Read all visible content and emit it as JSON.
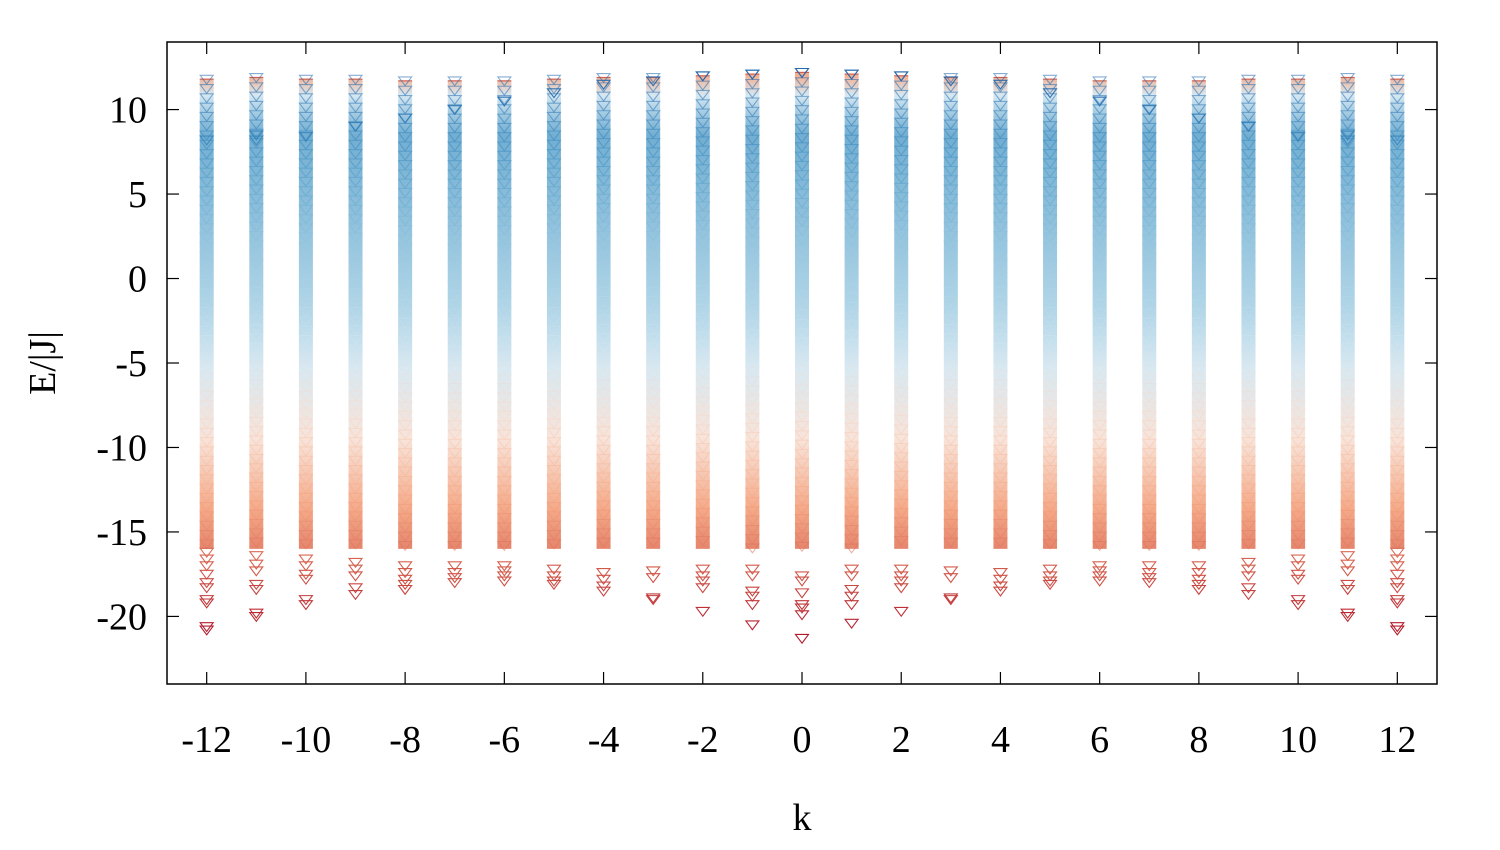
{
  "chart_data": {
    "type": "scatter",
    "xlabel": "k",
    "ylabel": "E/|J|",
    "xlim": [
      -12.8,
      12.8
    ],
    "ylim": [
      -24,
      14
    ],
    "x_ticks": [
      -12,
      -10,
      -8,
      -6,
      -4,
      -2,
      0,
      2,
      4,
      6,
      8,
      10,
      12
    ],
    "y_ticks": [
      10,
      5,
      0,
      -5,
      -10,
      -15,
      -20
    ],
    "grid": false,
    "legend": "none",
    "marker": "downward-triangle",
    "color_scale": {
      "low": "#b2182b",
      "mid_low": "#f4a582",
      "mid": "#dce9f2",
      "mid_high": "#92c5de",
      "high": "#2166ac"
    },
    "band": {
      "continuum_top": 11.8,
      "continuum_bottom": -16
    },
    "columns": [
      {
        "k": -12,
        "min": -20.8,
        "max": 11.8,
        "outliers": [
          -16.2,
          -16.6,
          -17.0,
          -17.5,
          -18.0,
          -18.3,
          -19.0,
          -19.2,
          -20.6,
          -20.8
        ],
        "top": [
          8.2
        ]
      },
      {
        "k": -11,
        "min": -20.0,
        "max": 11.9,
        "outliers": [
          -16.4,
          -16.9,
          -17.3,
          -18.1,
          -18.4,
          -19.8,
          -20.0
        ],
        "top": [
          8.5,
          8.2
        ]
      },
      {
        "k": -10,
        "min": -19.3,
        "max": 11.8,
        "outliers": [
          -16.6,
          -17.0,
          -17.5,
          -17.8,
          -19.0,
          -19.3
        ],
        "top": [
          8.4
        ]
      },
      {
        "k": -9,
        "min": -18.7,
        "max": 11.8,
        "outliers": [
          -16.8,
          -17.2,
          -17.6,
          -18.3,
          -18.7
        ],
        "top": [
          9.0
        ]
      },
      {
        "k": -8,
        "min": -18.4,
        "max": 11.7,
        "outliers": [
          -17.0,
          -17.4,
          -17.8,
          -18.1,
          -18.4
        ],
        "top": [
          9.5
        ]
      },
      {
        "k": -7,
        "min": -18.0,
        "max": 11.7,
        "outliers": [
          -17.0,
          -17.4,
          -17.7,
          -18.0
        ],
        "top": [
          10.0
        ]
      },
      {
        "k": -6,
        "min": -17.9,
        "max": 11.7,
        "outliers": [
          -17.0,
          -17.3,
          -17.6,
          -17.9
        ],
        "top": [
          10.5
        ]
      },
      {
        "k": -5,
        "min": -18.1,
        "max": 11.8,
        "outliers": [
          -17.2,
          -17.6,
          -17.9,
          -18.1
        ],
        "top": [
          11.0
        ]
      },
      {
        "k": -4,
        "min": -18.5,
        "max": 11.9,
        "outliers": [
          -17.4,
          -17.8,
          -18.2,
          -18.5
        ],
        "top": [
          11.5
        ]
      },
      {
        "k": -3,
        "min": -19.0,
        "max": 11.9,
        "outliers": [
          -17.3,
          -17.7,
          -18.9,
          -19.0
        ],
        "top": [
          11.7
        ]
      },
      {
        "k": -2,
        "min": -19.7,
        "max": 12.0,
        "outliers": [
          -17.2,
          -17.6,
          -17.9,
          -18.3,
          -19.7
        ],
        "top": [
          12.0
        ]
      },
      {
        "k": -1,
        "min": -20.5,
        "max": 12.1,
        "outliers": [
          -17.2,
          -17.6,
          -18.5,
          -18.8,
          -19.3,
          -20.5
        ],
        "top": [
          12.1
        ]
      },
      {
        "k": 0,
        "min": -21.3,
        "max": 12.2,
        "outliers": [
          -17.6,
          -17.9,
          -18.6,
          -19.3,
          -19.5,
          -19.9,
          -21.3
        ],
        "top": [
          12.2
        ]
      },
      {
        "k": 1,
        "min": -20.4,
        "max": 12.1,
        "outliers": [
          -17.2,
          -17.6,
          -18.4,
          -18.8,
          -19.3,
          -20.4
        ],
        "top": [
          12.1
        ]
      },
      {
        "k": 2,
        "min": -19.7,
        "max": 12.0,
        "outliers": [
          -17.2,
          -17.6,
          -17.9,
          -18.3,
          -19.7
        ],
        "top": [
          12.0
        ]
      },
      {
        "k": 3,
        "min": -19.0,
        "max": 11.9,
        "outliers": [
          -17.3,
          -17.7,
          -18.9,
          -19.0
        ],
        "top": [
          11.7
        ]
      },
      {
        "k": 4,
        "min": -18.5,
        "max": 11.9,
        "outliers": [
          -17.4,
          -17.8,
          -18.2,
          -18.5
        ],
        "top": [
          11.5
        ]
      },
      {
        "k": 5,
        "min": -18.1,
        "max": 11.8,
        "outliers": [
          -17.2,
          -17.6,
          -17.9,
          -18.1
        ],
        "top": [
          11.0
        ]
      },
      {
        "k": 6,
        "min": -17.9,
        "max": 11.7,
        "outliers": [
          -17.0,
          -17.3,
          -17.6,
          -17.9
        ],
        "top": [
          10.5
        ]
      },
      {
        "k": 7,
        "min": -18.0,
        "max": 11.7,
        "outliers": [
          -17.0,
          -17.4,
          -17.7,
          -18.0
        ],
        "top": [
          10.0
        ]
      },
      {
        "k": 8,
        "min": -18.4,
        "max": 11.7,
        "outliers": [
          -17.0,
          -17.4,
          -17.8,
          -18.1,
          -18.4
        ],
        "top": [
          9.5
        ]
      },
      {
        "k": 9,
        "min": -18.7,
        "max": 11.8,
        "outliers": [
          -16.8,
          -17.2,
          -17.6,
          -18.3,
          -18.7
        ],
        "top": [
          9.0
        ]
      },
      {
        "k": 10,
        "min": -19.3,
        "max": 11.8,
        "outliers": [
          -16.6,
          -17.0,
          -17.5,
          -17.8,
          -19.0,
          -19.3
        ],
        "top": [
          8.4
        ]
      },
      {
        "k": 11,
        "min": -20.0,
        "max": 11.9,
        "outliers": [
          -16.4,
          -16.9,
          -17.3,
          -18.1,
          -18.4,
          -19.8,
          -20.0
        ],
        "top": [
          8.5,
          8.2
        ]
      },
      {
        "k": 12,
        "min": -20.8,
        "max": 11.8,
        "outliers": [
          -16.2,
          -16.6,
          -17.0,
          -17.5,
          -18.0,
          -18.3,
          -19.0,
          -19.2,
          -20.6,
          -20.8
        ],
        "top": [
          8.2
        ]
      }
    ]
  }
}
